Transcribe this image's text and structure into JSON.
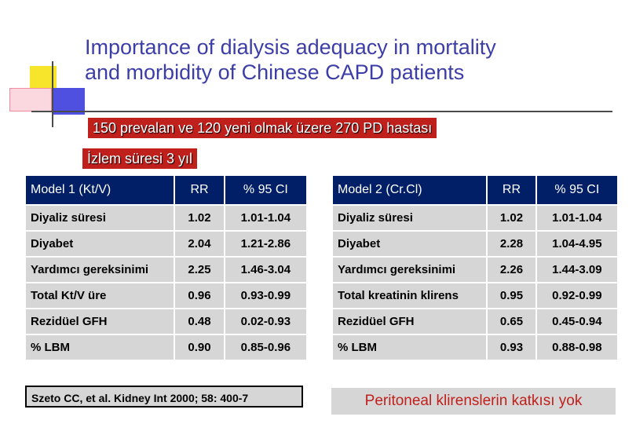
{
  "title": {
    "line1": "Importance of dialysis adequacy in mortality",
    "line2": "and morbidity of Chinese CAPD patients"
  },
  "banner1": "150 prevalan ve 120 yeni olmak üzere 270 PD hastası",
  "banner2": "İzlem süresi 3 yıl",
  "table1": {
    "headers": [
      "Model 1 (Kt/V)",
      "RR",
      "% 95 CI"
    ],
    "rows": [
      [
        "Diyaliz süresi",
        "1.02",
        "1.01-1.04"
      ],
      [
        "Diyabet",
        "2.04",
        "1.21-2.86"
      ],
      [
        "Yardımcı gereksinimi",
        "2.25",
        "1.46-3.04"
      ],
      [
        "Total Kt/V üre",
        "0.96",
        "0.93-0.99"
      ],
      [
        "Rezidüel GFH",
        "0.48",
        "0.02-0.93"
      ],
      [
        "% LBM",
        "0.90",
        "0.85-0.96"
      ]
    ]
  },
  "table2": {
    "headers": [
      "Model 2 (Cr.Cl)",
      "RR",
      "% 95 CI"
    ],
    "rows": [
      [
        "Diyaliz süresi",
        "1.02",
        "1.01-1.04"
      ],
      [
        "Diyabet",
        "2.28",
        "1.04-4.95"
      ],
      [
        "Yardımcı gereksinimi",
        "2.26",
        "1.44-3.09"
      ],
      [
        "Total kreatinin klirens",
        "0.95",
        "0.92-0.99"
      ],
      [
        "Rezidüel GFH",
        "0.65",
        "0.45-0.94"
      ],
      [
        "% LBM",
        "0.93",
        "0.88-0.98"
      ]
    ]
  },
  "citation": "Szeto CC, et al. Kidney Int 2000; 58: 400-7",
  "note": "Peritoneal klirenslerin katkısı yok",
  "colors": {
    "title": "#3d3da8",
    "banner": "#c0201c",
    "header": "#001f66",
    "cell": "#d6d6d6"
  }
}
